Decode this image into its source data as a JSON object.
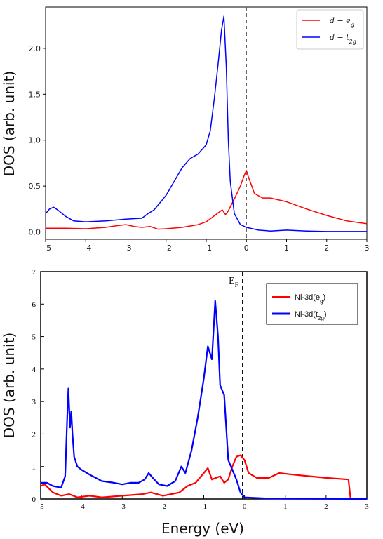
{
  "chart_data": [
    {
      "type": "line",
      "ylabel": "DOS (arb. unit)",
      "xlabel": "",
      "xlim": [
        -5,
        3
      ],
      "ylim": [
        -0.08,
        2.45
      ],
      "x_ticks": [
        "−5",
        "−4",
        "−3",
        "−2",
        "−1",
        "0",
        "1",
        "2",
        "3"
      ],
      "y_ticks": [
        "0.0",
        "0.5",
        "1.0",
        "1.5",
        "2.0"
      ],
      "legend_position": "top-right",
      "fermi_line_x": 0,
      "series": [
        {
          "name": "d − e",
          "sub": "g",
          "color": "#ff0000",
          "points": [
            [
              -5,
              0.04
            ],
            [
              -4.5,
              0.04
            ],
            [
              -4,
              0.035
            ],
            [
              -3.5,
              0.05
            ],
            [
              -3.2,
              0.07
            ],
            [
              -3,
              0.08
            ],
            [
              -2.8,
              0.06
            ],
            [
              -2.6,
              0.05
            ],
            [
              -2.4,
              0.06
            ],
            [
              -2.2,
              0.03
            ],
            [
              -2,
              0.035
            ],
            [
              -1.6,
              0.05
            ],
            [
              -1.2,
              0.08
            ],
            [
              -1,
              0.11
            ],
            [
              -0.85,
              0.16
            ],
            [
              -0.7,
              0.21
            ],
            [
              -0.6,
              0.24
            ],
            [
              -0.52,
              0.19
            ],
            [
              -0.45,
              0.23
            ],
            [
              -0.3,
              0.36
            ],
            [
              -0.15,
              0.5
            ],
            [
              -0.05,
              0.62
            ],
            [
              0,
              0.67
            ],
            [
              0.05,
              0.6
            ],
            [
              0.2,
              0.42
            ],
            [
              0.4,
              0.37
            ],
            [
              0.6,
              0.37
            ],
            [
              1,
              0.33
            ],
            [
              1.5,
              0.25
            ],
            [
              2,
              0.18
            ],
            [
              2.5,
              0.12
            ],
            [
              3,
              0.09
            ]
          ]
        },
        {
          "name": "d − t",
          "sub": "2g",
          "color": "#0000ff",
          "points": [
            [
              -5,
              0.2
            ],
            [
              -4.9,
              0.25
            ],
            [
              -4.8,
              0.27
            ],
            [
              -4.7,
              0.24
            ],
            [
              -4.5,
              0.17
            ],
            [
              -4.3,
              0.12
            ],
            [
              -4,
              0.11
            ],
            [
              -3.5,
              0.12
            ],
            [
              -3,
              0.14
            ],
            [
              -2.6,
              0.15
            ],
            [
              -2.45,
              0.2
            ],
            [
              -2.3,
              0.24
            ],
            [
              -2,
              0.4
            ],
            [
              -1.8,
              0.55
            ],
            [
              -1.6,
              0.7
            ],
            [
              -1.4,
              0.8
            ],
            [
              -1.2,
              0.85
            ],
            [
              -1,
              0.95
            ],
            [
              -0.9,
              1.1
            ],
            [
              -0.8,
              1.45
            ],
            [
              -0.7,
              1.85
            ],
            [
              -0.62,
              2.2
            ],
            [
              -0.56,
              2.35
            ],
            [
              -0.5,
              1.8
            ],
            [
              -0.45,
              1.0
            ],
            [
              -0.4,
              0.55
            ],
            [
              -0.3,
              0.2
            ],
            [
              -0.15,
              0.08
            ],
            [
              0,
              0.05
            ],
            [
              0.3,
              0.02
            ],
            [
              0.6,
              0.01
            ],
            [
              1,
              0.02
            ],
            [
              1.5,
              0.01
            ],
            [
              2,
              0.005
            ],
            [
              3,
              0.005
            ]
          ]
        }
      ]
    },
    {
      "type": "line",
      "ylabel": "DOS (arb. unit)",
      "xlabel": "Energy (eV)",
      "xlim": [
        -5,
        3
      ],
      "ylim": [
        0,
        7
      ],
      "x_ticks": [
        "-5",
        "-4",
        "-3",
        "-2",
        "-1",
        "0",
        "1",
        "2",
        "3"
      ],
      "y_ticks": [
        "0",
        "1",
        "2",
        "3",
        "4",
        "5",
        "6",
        "7"
      ],
      "legend_position": "top-right",
      "annotation": "E",
      "annotation_sub": "F",
      "fermi_line_x": -0.05,
      "series": [
        {
          "name": "Ni-3d(e",
          "sub": "g",
          "suffix": ")",
          "color": "#ff0000",
          "points": [
            [
              -5,
              0.4
            ],
            [
              -4.9,
              0.45
            ],
            [
              -4.7,
              0.2
            ],
            [
              -4.5,
              0.1
            ],
            [
              -4.3,
              0.15
            ],
            [
              -4.1,
              0.05
            ],
            [
              -3.8,
              0.1
            ],
            [
              -3.5,
              0.05
            ],
            [
              -3,
              0.1
            ],
            [
              -2.5,
              0.15
            ],
            [
              -2.3,
              0.2
            ],
            [
              -2,
              0.1
            ],
            [
              -1.6,
              0.2
            ],
            [
              -1.4,
              0.4
            ],
            [
              -1.2,
              0.5
            ],
            [
              -1,
              0.8
            ],
            [
              -0.9,
              0.95
            ],
            [
              -0.8,
              0.6
            ],
            [
              -0.6,
              0.7
            ],
            [
              -0.5,
              0.5
            ],
            [
              -0.4,
              0.6
            ],
            [
              -0.3,
              1.0
            ],
            [
              -0.2,
              1.3
            ],
            [
              -0.1,
              1.35
            ],
            [
              0,
              1.2
            ],
            [
              0.1,
              0.8
            ],
            [
              0.3,
              0.65
            ],
            [
              0.6,
              0.65
            ],
            [
              0.85,
              0.8
            ],
            [
              1.2,
              0.75
            ],
            [
              1.6,
              0.7
            ],
            [
              2,
              0.65
            ],
            [
              2.55,
              0.6
            ],
            [
              2.6,
              0.0
            ],
            [
              3,
              0.0
            ]
          ]
        },
        {
          "name": "Ni-3d(t",
          "sub": "2g",
          "suffix": ")",
          "color": "#0000ff",
          "points": [
            [
              -5,
              0.5
            ],
            [
              -4.85,
              0.5
            ],
            [
              -4.7,
              0.4
            ],
            [
              -4.5,
              0.35
            ],
            [
              -4.4,
              0.7
            ],
            [
              -4.35,
              2.5
            ],
            [
              -4.32,
              3.4
            ],
            [
              -4.28,
              2.2
            ],
            [
              -4.25,
              2.7
            ],
            [
              -4.22,
              2.0
            ],
            [
              -4.18,
              1.3
            ],
            [
              -4.1,
              1.0
            ],
            [
              -4.0,
              0.9
            ],
            [
              -3.8,
              0.75
            ],
            [
              -3.5,
              0.55
            ],
            [
              -3.2,
              0.5
            ],
            [
              -3,
              0.45
            ],
            [
              -2.8,
              0.5
            ],
            [
              -2.6,
              0.5
            ],
            [
              -2.45,
              0.6
            ],
            [
              -2.35,
              0.8
            ],
            [
              -2.25,
              0.65
            ],
            [
              -2.1,
              0.45
            ],
            [
              -1.9,
              0.4
            ],
            [
              -1.7,
              0.55
            ],
            [
              -1.55,
              1.0
            ],
            [
              -1.45,
              0.8
            ],
            [
              -1.3,
              1.5
            ],
            [
              -1.15,
              2.5
            ],
            [
              -1.0,
              3.7
            ],
            [
              -0.9,
              4.7
            ],
            [
              -0.8,
              4.3
            ],
            [
              -0.72,
              6.1
            ],
            [
              -0.65,
              5.0
            ],
            [
              -0.6,
              3.5
            ],
            [
              -0.5,
              3.2
            ],
            [
              -0.4,
              1.2
            ],
            [
              -0.3,
              0.9
            ],
            [
              -0.2,
              0.6
            ],
            [
              -0.1,
              0.2
            ],
            [
              0,
              0.05
            ],
            [
              0.5,
              0.02
            ],
            [
              1,
              0.01
            ],
            [
              3,
              0.0
            ]
          ]
        }
      ]
    }
  ]
}
